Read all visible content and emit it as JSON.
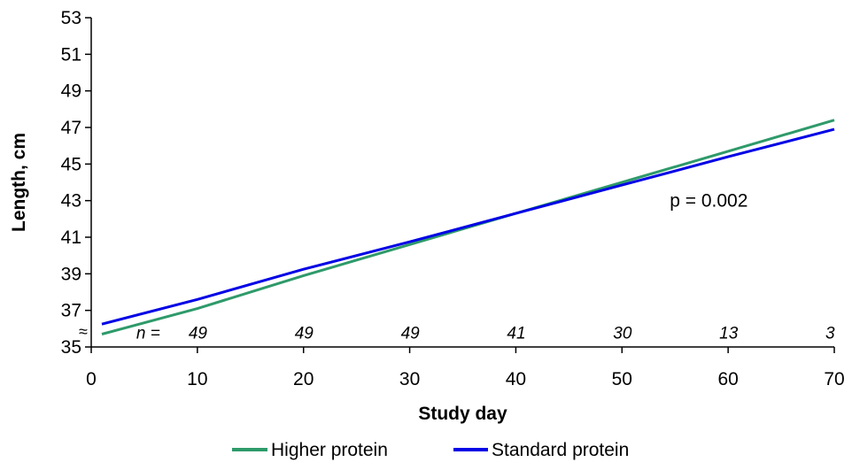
{
  "chart_data": {
    "type": "line",
    "title": "",
    "xlabel": "Study day",
    "ylabel": "Length, cm",
    "xlim": [
      0,
      70
    ],
    "ylim": [
      35,
      53
    ],
    "x_ticks": [
      0,
      10,
      20,
      30,
      40,
      50,
      60,
      70
    ],
    "y_ticks": [
      35,
      37,
      39,
      41,
      43,
      45,
      47,
      49,
      51,
      53
    ],
    "axis_break_symbol": "≈",
    "grid": false,
    "legend_position": "bottom",
    "series": [
      {
        "name": "Higher protein",
        "color": "#2e9a6a",
        "x": [
          1,
          10,
          20,
          30,
          40,
          50,
          60,
          70
        ],
        "y": [
          35.7,
          37.1,
          38.9,
          40.6,
          42.3,
          44.0,
          45.7,
          47.4
        ]
      },
      {
        "name": "Standard protein",
        "color": "#0000e6",
        "x": [
          1,
          10,
          20,
          30,
          40,
          50,
          60,
          70
        ],
        "y": [
          36.25,
          37.6,
          39.25,
          40.75,
          42.3,
          43.85,
          45.4,
          46.9
        ]
      }
    ],
    "n_label_prefix": "n =",
    "n_counts": [
      {
        "x": 10,
        "label": "49"
      },
      {
        "x": 20,
        "label": "49"
      },
      {
        "x": 30,
        "label": "49"
      },
      {
        "x": 40,
        "label": "41"
      },
      {
        "x": 50,
        "label": "30"
      },
      {
        "x": 60,
        "label": "13"
      },
      {
        "x": 70,
        "label": "3"
      }
    ],
    "annotations": [
      {
        "text": "p = 0.002",
        "x": 54.5,
        "y": 43
      }
    ]
  }
}
